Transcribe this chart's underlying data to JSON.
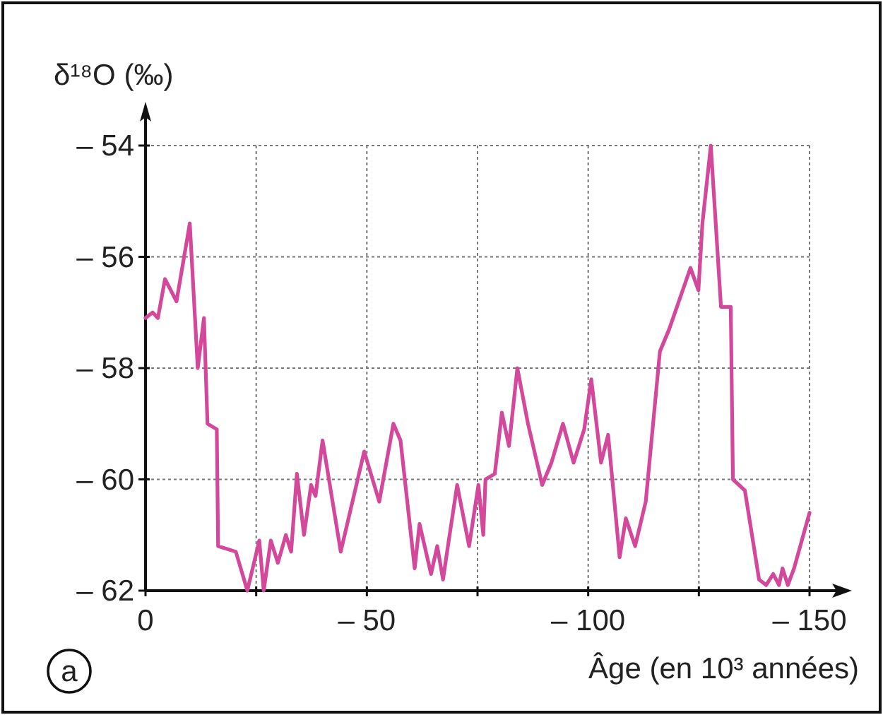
{
  "chart_data": {
    "type": "line",
    "ylabel": "δ¹⁸O (‰)",
    "xlabel": "Âge (en 10³ années)",
    "annotations": [
      "a"
    ],
    "xlim": [
      0,
      -150
    ],
    "ylim": [
      -62,
      -54
    ],
    "xticks": [
      0,
      {
        "value": -25,
        "label": null
      },
      {
        "value": -50,
        "label": "– 50"
      },
      {
        "value": -75,
        "label": null
      },
      {
        "value": -100,
        "label": "– 100"
      },
      {
        "value": -125,
        "label": null
      },
      {
        "value": -150,
        "label": "– 150"
      }
    ],
    "yticks": [
      {
        "value": -62,
        "label": "– 62"
      },
      {
        "value": -60,
        "label": "– 60"
      },
      {
        "value": -58,
        "label": "– 58"
      },
      {
        "value": -56,
        "label": "– 56"
      },
      {
        "value": -54,
        "label": "– 54"
      }
    ],
    "grid": true,
    "line_style": "solid",
    "marker": "none",
    "series": [
      {
        "color": "#d4489c",
        "x": [
          0,
          -1.6,
          -2.8,
          -4.4,
          -7,
          -10,
          -11.8,
          -13.2,
          -14,
          -16.1,
          -16.4,
          -20.4,
          -23,
          -25.7,
          -26.7,
          -28.3,
          -29.9,
          -31.7,
          -32.9,
          -34.2,
          -35.8,
          -37.4,
          -38.4,
          -40,
          -44.1,
          -49.4,
          -52.8,
          -56,
          -57.6,
          -60.8,
          -61.9,
          -64.5,
          -65.9,
          -67.2,
          -68.5,
          -70.4,
          -73.1,
          -75.2,
          -76.3,
          -76.8,
          -78.9,
          -80.5,
          -82.1,
          -84,
          -86.4,
          -89.6,
          -91.7,
          -94.3,
          -96.7,
          -99.1,
          -100.7,
          -102.9,
          -104.5,
          -107.1,
          -108.5,
          -110.6,
          -113,
          -116.2,
          -118.3,
          -123.1,
          -124.9,
          -125.8,
          -127.7,
          -130,
          -132.2,
          -132.7,
          -135.4,
          -138.6,
          -140.2,
          -141.8,
          -143.1,
          -143.9,
          -145.1,
          -146.5,
          -150
        ],
        "values": [
          -57.1,
          -57,
          -57.1,
          -56.4,
          -56.8,
          -55.4,
          -58,
          -57.1,
          -59,
          -59.1,
          -61.2,
          -61.3,
          -62,
          -61.1,
          -62,
          -61.1,
          -61.5,
          -61,
          -61.3,
          -59.9,
          -61,
          -60.1,
          -60.3,
          -59.3,
          -61.3,
          -59.5,
          -60.4,
          -59,
          -59.3,
          -61.6,
          -60.8,
          -61.7,
          -61.2,
          -61.8,
          -61.1,
          -60.1,
          -61.2,
          -60.1,
          -61,
          -60,
          -59.9,
          -58.8,
          -59.4,
          -58,
          -59,
          -60.1,
          -59.7,
          -59,
          -59.7,
          -59.1,
          -58.2,
          -59.7,
          -59.2,
          -61.4,
          -60.7,
          -61.2,
          -60.4,
          -57.7,
          -57.3,
          -56.2,
          -56.6,
          -55.4,
          -54,
          -56.9,
          -56.9,
          -60,
          -60.2,
          -61.8,
          -61.9,
          -61.7,
          -61.9,
          -61.6,
          -61.9,
          -61.6,
          -60.6
        ]
      }
    ]
  }
}
